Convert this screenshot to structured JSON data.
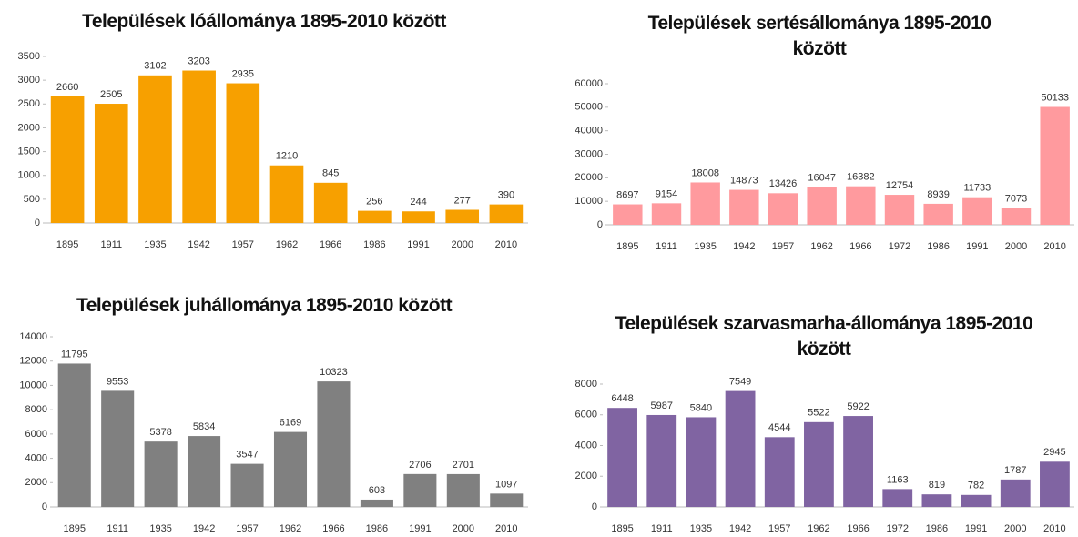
{
  "chart_data": [
    {
      "type": "bar",
      "title": "Települések lóállománya 1895-2010 között",
      "categories": [
        "1895",
        "1911",
        "1935",
        "1942",
        "1957",
        "1962",
        "1966",
        "1986",
        "1991",
        "2000",
        "2010"
      ],
      "values": [
        2660,
        2505,
        3102,
        3203,
        2935,
        1210,
        845,
        256,
        244,
        277,
        390
      ],
      "color": "#f7a000",
      "ylim": [
        0,
        3500
      ],
      "yticks": [
        0,
        500,
        1000,
        1500,
        2000,
        2500,
        3000,
        3500
      ]
    },
    {
      "type": "bar",
      "title": "Települések sertésállománya 1895-2010 között",
      "categories": [
        "1895",
        "1911",
        "1935",
        "1942",
        "1957",
        "1962",
        "1966",
        "1972",
        "1986",
        "1991",
        "2000",
        "2010"
      ],
      "values": [
        8697,
        9154,
        18008,
        14873,
        13426,
        16047,
        16382,
        12754,
        8939,
        11733,
        7073,
        50133
      ],
      "color": "#ff9a9e",
      "ylim": [
        0,
        60000
      ],
      "yticks": [
        0,
        10000,
        20000,
        30000,
        40000,
        50000,
        60000
      ]
    },
    {
      "type": "bar",
      "title": "Települések juhállománya 1895-2010 között",
      "categories": [
        "1895",
        "1911",
        "1935",
        "1942",
        "1957",
        "1962",
        "1966",
        "1986",
        "1991",
        "2000",
        "2010"
      ],
      "values": [
        11795,
        9553,
        5378,
        5834,
        3547,
        6169,
        10323,
        603,
        2706,
        2701,
        1097
      ],
      "color": "#808080",
      "ylim": [
        0,
        14000
      ],
      "yticks": [
        0,
        2000,
        4000,
        6000,
        8000,
        10000,
        12000,
        14000
      ]
    },
    {
      "type": "bar",
      "title": "Települések szarvasmarha-állománya 1895-2010 között",
      "categories": [
        "1895",
        "1911",
        "1935",
        "1942",
        "1957",
        "1962",
        "1966",
        "1972",
        "1986",
        "1991",
        "2000",
        "2010"
      ],
      "values": [
        6448,
        5987,
        5840,
        7549,
        4544,
        5522,
        5922,
        1163,
        819,
        782,
        1787,
        2945
      ],
      "color": "#8064a2",
      "ylim": [
        0,
        8000
      ],
      "yticks": [
        0,
        2000,
        4000,
        6000,
        8000
      ]
    }
  ]
}
